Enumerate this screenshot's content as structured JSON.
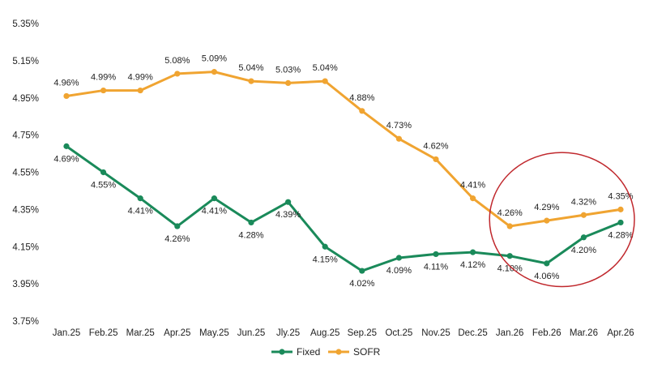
{
  "chart_data": {
    "type": "line",
    "categories": [
      "Jan.25",
      "Feb.25",
      "Mar.25",
      "Apr.25",
      "May.25",
      "Jun.25",
      "Jly.25",
      "Aug.25",
      "Sep.25",
      "Oct.25",
      "Nov.25",
      "Dec.25",
      "Jan.26",
      "Feb.26",
      "Mar.26",
      "Apr.26"
    ],
    "series": [
      {
        "name": "Fixed",
        "color": "#1a8a5a",
        "values": [
          4.69,
          4.55,
          4.41,
          4.26,
          4.41,
          4.28,
          4.39,
          4.15,
          4.02,
          4.09,
          4.11,
          4.12,
          4.1,
          4.06,
          4.2,
          4.28
        ],
        "labels": [
          "4.69%",
          "4.55%",
          "4.41%",
          "4.26%",
          "4.41%",
          "4.28%",
          "4.39%",
          "4.15%",
          "4.02%",
          "4.09%",
          "4.11%",
          "4.12%",
          "4.10%",
          "4.06%",
          "4.20%",
          "4.28%"
        ]
      },
      {
        "name": "SOFR",
        "color": "#f0a431",
        "values": [
          4.96,
          4.99,
          4.99,
          5.08,
          5.09,
          5.04,
          5.03,
          5.04,
          4.88,
          4.73,
          4.62,
          4.41,
          4.26,
          4.29,
          4.32,
          4.35
        ],
        "labels": [
          "4.96%",
          "4.99%",
          "4.99%",
          "5.08%",
          "5.09%",
          "5.04%",
          "5.03%",
          "5.04%",
          "4.88%",
          "4.73%",
          "4.62%",
          "4.41%",
          "4.26%",
          "4.29%",
          "4.32%",
          "4.35%"
        ]
      }
    ],
    "title": "",
    "xlabel": "",
    "ylabel": "",
    "ylim": [
      3.75,
      5.35
    ],
    "yticks": [
      "3.75%",
      "3.95%",
      "4.15%",
      "4.35%",
      "4.55%",
      "4.75%",
      "4.95%",
      "5.15%",
      "5.35%"
    ],
    "ytick_values": [
      3.75,
      3.95,
      4.15,
      4.35,
      4.55,
      4.75,
      4.95,
      5.15,
      5.35
    ],
    "grid": false,
    "legend_position": "bottom-center",
    "annotation": {
      "type": "ellipse",
      "color": "#c0282d",
      "x_from": "Jan.26",
      "x_to": "Apr.26",
      "y_from": 3.97,
      "y_to": 4.46
    }
  }
}
